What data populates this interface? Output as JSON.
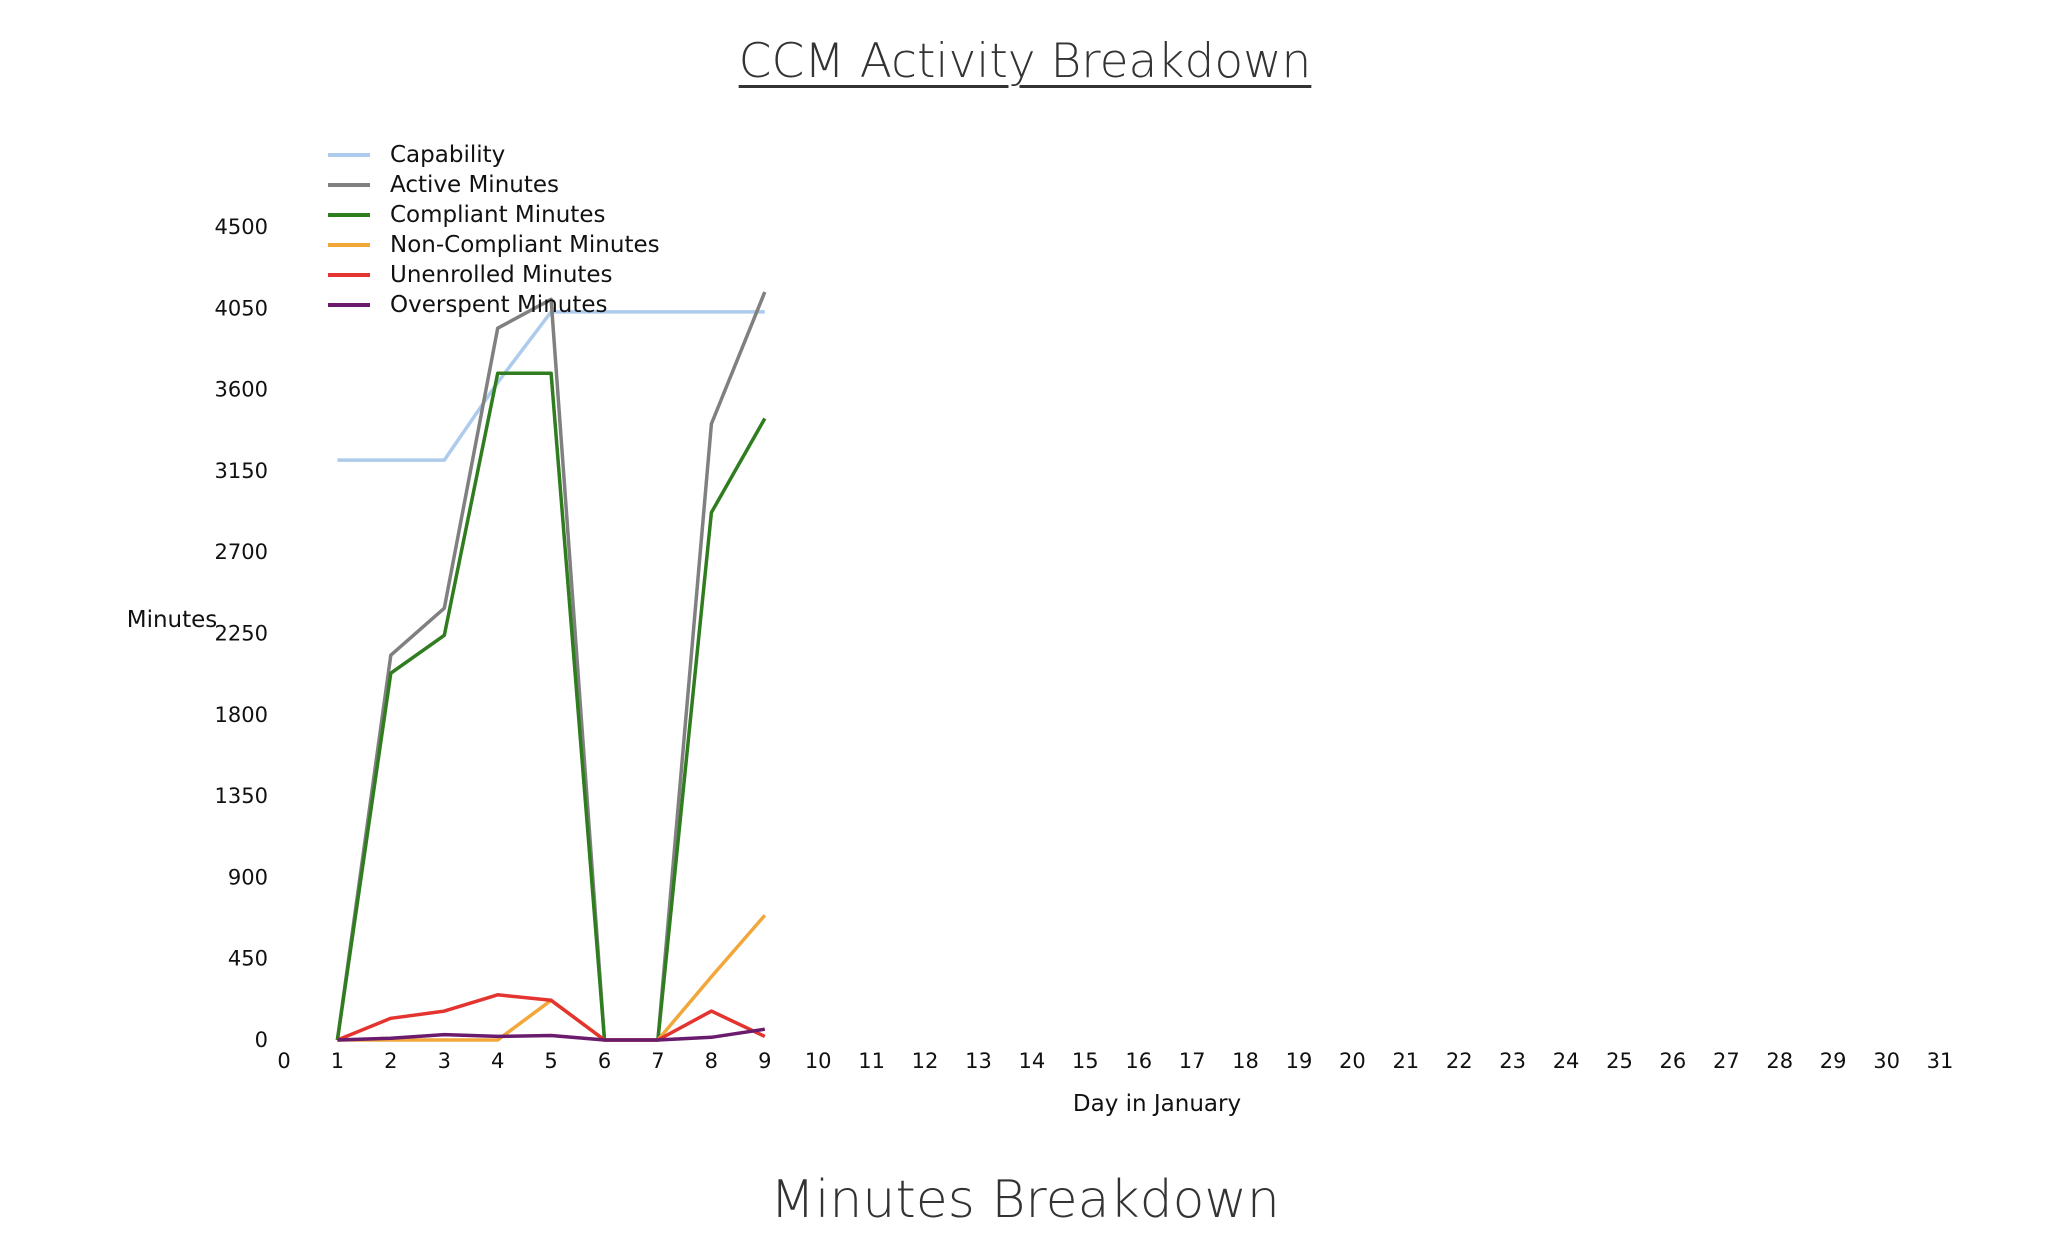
{
  "page": {
    "title": "CCM Activity Breakdown",
    "section_heading": "Minutes Breakdown"
  },
  "chart_data": {
    "type": "line",
    "title": "CCM Activity Breakdown",
    "xlabel": "Day in January",
    "ylabel": "Minutes",
    "x_ticks": [
      0,
      1,
      2,
      3,
      4,
      5,
      6,
      7,
      8,
      9,
      10,
      11,
      12,
      13,
      14,
      15,
      16,
      17,
      18,
      19,
      20,
      21,
      22,
      23,
      24,
      25,
      26,
      27,
      28,
      29,
      30,
      31
    ],
    "y_ticks": [
      0,
      450,
      900,
      1350,
      1800,
      2250,
      2700,
      3150,
      3600,
      4050,
      4500
    ],
    "xlim": [
      0,
      31
    ],
    "ylim": [
      0,
      4500
    ],
    "grid": false,
    "legend_position": "top-left",
    "series": [
      {
        "name": "Capability",
        "color": "#aecbeb",
        "x": [
          1,
          2,
          3,
          4,
          5,
          6,
          7,
          8,
          9
        ],
        "values": [
          3210,
          3210,
          3210,
          3640,
          4030,
          4030,
          4030,
          4030,
          4030
        ]
      },
      {
        "name": "Active Minutes",
        "color": "#808080",
        "x": [
          1,
          2,
          3,
          4,
          5,
          6,
          7,
          8,
          9
        ],
        "values": [
          0,
          2130,
          2390,
          3940,
          4100,
          0,
          0,
          3410,
          4140
        ]
      },
      {
        "name": "Compliant Minutes",
        "color": "#2f7d1f",
        "x": [
          1,
          2,
          3,
          4,
          5,
          6,
          7,
          8,
          9
        ],
        "values": [
          0,
          2030,
          2240,
          3690,
          3690,
          0,
          0,
          2920,
          3440
        ]
      },
      {
        "name": "Non-Compliant Minutes",
        "color": "#f2a73b",
        "x": [
          1,
          2,
          3,
          4,
          5,
          6,
          7,
          8,
          9
        ],
        "values": [
          0,
          0,
          0,
          0,
          220,
          0,
          0,
          350,
          690
        ]
      },
      {
        "name": "Unenrolled Minutes",
        "color": "#e3342f",
        "x": [
          1,
          2,
          3,
          4,
          5,
          6,
          7,
          8,
          9
        ],
        "values": [
          0,
          120,
          160,
          250,
          220,
          0,
          0,
          160,
          20
        ]
      },
      {
        "name": "Overspent Minutes",
        "color": "#6a1b6e",
        "x": [
          1,
          2,
          3,
          4,
          5,
          6,
          7,
          8,
          9
        ],
        "values": [
          0,
          10,
          30,
          20,
          25,
          0,
          0,
          15,
          60
        ]
      }
    ]
  }
}
